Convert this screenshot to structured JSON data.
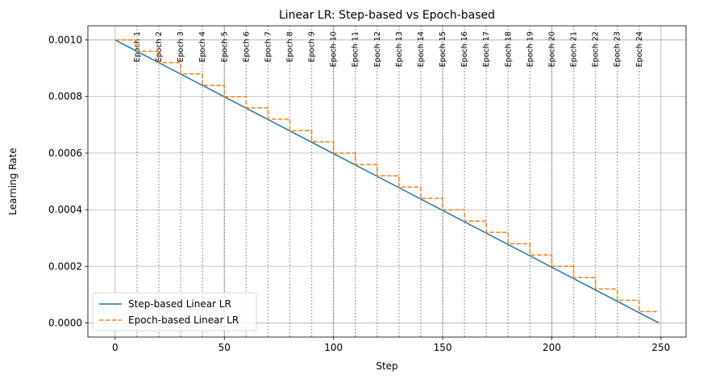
{
  "chart_data": {
    "type": "line",
    "title": "Linear LR: Step-based vs Epoch-based",
    "xlabel": "Step",
    "ylabel": "Learning Rate",
    "xlim": [
      -12.5,
      261.5
    ],
    "ylim": [
      -5e-05,
      0.00105
    ],
    "xticks": [
      0,
      50,
      100,
      150,
      200,
      250
    ],
    "xtick_labels": [
      "0",
      "50",
      "100",
      "150",
      "200",
      "250"
    ],
    "yticks": [
      0.0,
      0.0002,
      0.0004,
      0.0006,
      0.0008,
      0.001
    ],
    "ytick_labels": [
      "0.0000",
      "0.0002",
      "0.0004",
      "0.0006",
      "0.0008",
      "0.0010"
    ],
    "grid": true,
    "legend_position": "lower-left",
    "series": [
      {
        "name": "Step-based Linear LR",
        "style": "solid",
        "color": "#1f77b4",
        "x": [
          0,
          249
        ],
        "y": [
          0.001,
          0.0
        ]
      },
      {
        "name": "Epoch-based Linear LR",
        "style": "dashed",
        "color": "#ff7f0e",
        "x": [
          0,
          10,
          20,
          30,
          40,
          50,
          60,
          70,
          80,
          90,
          100,
          110,
          120,
          130,
          140,
          150,
          160,
          170,
          180,
          190,
          200,
          210,
          220,
          230,
          240,
          249
        ],
        "y": [
          0.001,
          0.00096,
          0.00092,
          0.00088,
          0.00084,
          0.0008,
          0.00076,
          0.00072,
          0.00068,
          0.00064,
          0.0006,
          0.00056,
          0.00052,
          0.00048,
          0.00044,
          0.0004,
          0.00036,
          0.00032,
          0.00028,
          0.00024,
          0.0002,
          0.00016,
          0.00012,
          8e-05,
          4e-05,
          4e-05
        ]
      }
    ],
    "epoch_markers": {
      "steps": [
        10,
        20,
        30,
        40,
        50,
        60,
        70,
        80,
        90,
        100,
        110,
        120,
        130,
        140,
        150,
        160,
        170,
        180,
        190,
        200,
        210,
        220,
        230,
        240
      ],
      "labels": [
        "Epoch 1",
        "Epoch 2",
        "Epoch 3",
        "Epoch 4",
        "Epoch 5",
        "Epoch 6",
        "Epoch 7",
        "Epoch 8",
        "Epoch 9",
        "Epoch 10",
        "Epoch 11",
        "Epoch 12",
        "Epoch 13",
        "Epoch 14",
        "Epoch 15",
        "Epoch 16",
        "Epoch 17",
        "Epoch 18",
        "Epoch 19",
        "Epoch 20",
        "Epoch 21",
        "Epoch 22",
        "Epoch 23",
        "Epoch 24"
      ],
      "color": "#808080"
    }
  }
}
